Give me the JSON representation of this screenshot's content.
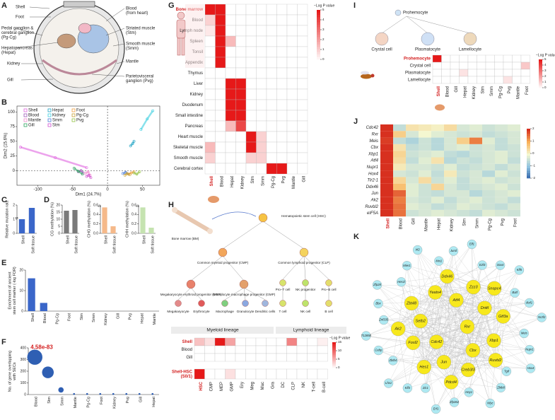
{
  "panel_labels": [
    "A",
    "B",
    "C",
    "D",
    "E",
    "F",
    "G",
    "H",
    "I",
    "J",
    "K"
  ],
  "A": {
    "labels": [
      [
        "Shell"
      ],
      [
        "Foot"
      ],
      [
        "Blood",
        "(from heart)"
      ],
      [
        "Pedal ganglion &",
        "cerebral ganglion",
        "(Pg-Cg)"
      ],
      [
        "Striated muscle",
        "(Stm)"
      ],
      [
        "Hepatopancreas",
        "(Hepat)"
      ],
      [
        "Smooth muscle",
        "(Smm)"
      ],
      [
        "Kidney"
      ],
      [
        "Mantle"
      ],
      [
        "Gill"
      ],
      [
        "Parietovisceral",
        "ganglion (Pvg)"
      ]
    ]
  },
  "B": {
    "type": "scatter",
    "xlabel": "Dim1 (24.7%)",
    "ylabel": "Dim2 (15.6%)",
    "xlim": [
      -130,
      75
    ],
    "ylim": [
      -25,
      110
    ],
    "xticks": [
      -100,
      -50,
      0,
      50
    ],
    "yticks": [
      0,
      25,
      50,
      75,
      100
    ],
    "series": [
      {
        "name": "Shell",
        "color": "#e066e0",
        "x": [
          -125,
          -75,
          -30
        ],
        "y": [
          40,
          22,
          5
        ]
      },
      {
        "name": "Blood",
        "color": "#9b59b6",
        "x": [
          -42,
          -38,
          -35
        ],
        "y": [
          -2,
          0,
          -4
        ]
      },
      {
        "name": "Mantle",
        "color": "#f08ccf",
        "x": [
          -32,
          -28,
          -25
        ],
        "y": [
          -5,
          -2,
          -8
        ]
      },
      {
        "name": "Gill",
        "color": "#2ca25f",
        "x": [
          -48,
          -42,
          -36
        ],
        "y": [
          4,
          -1,
          -6
        ]
      },
      {
        "name": "Hepat",
        "color": "#1fa3c4",
        "x": [
          33,
          36,
          38
        ],
        "y": [
          42,
          46,
          50
        ]
      },
      {
        "name": "Kidney",
        "color": "#3ccfe0",
        "x": [
          48,
          57,
          65
        ],
        "y": [
          70,
          88,
          102
        ]
      },
      {
        "name": "Smm",
        "color": "#4a7bd6",
        "x": [
          22,
          26,
          30
        ],
        "y": [
          -5,
          -3,
          -6
        ]
      },
      {
        "name": "Stm",
        "color": "#d050d0",
        "x": [
          -30,
          -27,
          -24
        ],
        "y": [
          -10,
          -8,
          -12
        ]
      },
      {
        "name": "Foot",
        "color": "#f0a040",
        "x": [
          30,
          34,
          38
        ],
        "y": [
          -6,
          -4,
          -2
        ]
      },
      {
        "name": "Pg-Cg",
        "color": "#c8a030",
        "x": [
          25,
          28,
          32
        ],
        "y": [
          -8,
          -5,
          -7
        ]
      },
      {
        "name": "Pvg",
        "color": "#90c040",
        "x": [
          38,
          42,
          46
        ],
        "y": [
          -4,
          -6,
          -2
        ]
      }
    ]
  },
  "C": {
    "type": "bar",
    "ylabel": [
      "Relative mutation rate"
    ],
    "categories": [
      "Shell",
      "Soft tissue"
    ],
    "values": [
      1.0,
      1.8
    ],
    "ylim": [
      0,
      2
    ],
    "yticks": [
      0,
      1,
      2
    ],
    "annotation": "**",
    "color": "#3a66c9"
  },
  "D": [
    {
      "type": "bar",
      "ylabel": [
        "CG methylation (%)"
      ],
      "categories": [
        "Shell",
        "Soft tissue"
      ],
      "values": [
        16,
        16.5
      ],
      "ylim": [
        0,
        20
      ],
      "yticks": [
        0,
        5,
        10,
        15,
        20
      ],
      "color": "#7a7a7a"
    },
    {
      "type": "bar",
      "ylabel": [
        "CHG methylation (%)"
      ],
      "categories": [
        "Shell",
        "Soft tissue"
      ],
      "values": [
        0.55,
        0.15
      ],
      "ylim": [
        0,
        0.6
      ],
      "yticks": [
        {
          "value": 0,
          "label": "0.0"
        },
        0.2,
        0.4,
        0.6
      ],
      "annotation": "**",
      "color": "#f5b98a"
    },
    {
      "type": "bar",
      "ylabel": [
        "CHH methylation (%)"
      ],
      "categories": [
        "Shell",
        "Soft tissue"
      ],
      "values": [
        0.55,
        0.12
      ],
      "ylim": [
        0,
        0.6
      ],
      "yticks": [
        {
          "value": 0,
          "label": "0.0"
        },
        0.2,
        0.4,
        0.6
      ],
      "annotation": "**",
      "color": "#c5e3b0"
    }
  ],
  "E": {
    "type": "bar",
    "ylabel": [
      "Enrichment of ancient",
      "stem cell marker (-log FDR)"
    ],
    "categories": [
      "Shell",
      "Blood",
      "Pg-Cg",
      "Foot",
      "Stm",
      "Smm",
      "Kidney",
      "Gill",
      "Pvg",
      "Hepat",
      "Mantle"
    ],
    "values": [
      16,
      4,
      0,
      0,
      0,
      0,
      0,
      0,
      0,
      0,
      0
    ],
    "ylim": [
      0,
      20
    ],
    "yticks": [
      0,
      10,
      20
    ],
    "color": "#3a66c9"
  },
  "F": {
    "type": "bubble",
    "ylabel": [
      "No. of gene overlapping",
      "with SECs"
    ],
    "categories": [
      "Blood",
      "Stm",
      "Smm",
      "Mantle",
      "Pg-Cg",
      "Foot",
      "Kidney",
      "Pvg",
      "Gill",
      "Hepat"
    ],
    "values": [
      320,
      190,
      40,
      5,
      5,
      5,
      5,
      5,
      5,
      5
    ],
    "ylim": [
      0,
      400
    ],
    "yticks": [
      0,
      100,
      200,
      300,
      400
    ],
    "annotation": "4.58e-83",
    "color": "#2f5fb3"
  },
  "G": {
    "legend_title": "−Log P value",
    "cticks": [
      0,
      1,
      2,
      3,
      4,
      5
    ],
    "rows": [
      "Bone marrow",
      "Blood",
      "Lymph node",
      "Spleen",
      "Tonsil",
      "Appendix",
      "Thymus",
      "Liver",
      "Kidney",
      "Duodenum",
      "Small intestine",
      "Pancreas",
      "Heart muscle",
      "Skeletal muscle",
      "Smooth muscle",
      "Cerebral cortex"
    ],
    "cols": [
      "Shell",
      "Blood",
      "Hepat",
      "Kidney",
      "Stm",
      "Smm",
      "Pg-Cg",
      "Pvg",
      "Mantle",
      "Gill"
    ],
    "matrix": [
      [
        5,
        5,
        0,
        0,
        0,
        0,
        0,
        0,
        0,
        0
      ],
      [
        1,
        5,
        0,
        0,
        0,
        0,
        0,
        0,
        0,
        0
      ],
      [
        0.5,
        5,
        0,
        0,
        0,
        0,
        0,
        0,
        0,
        0
      ],
      [
        0,
        5,
        1.5,
        0,
        0,
        0,
        0,
        0,
        0,
        0
      ],
      [
        0,
        5,
        0,
        0,
        0,
        0,
        0,
        0,
        0,
        0
      ],
      [
        0,
        5,
        0,
        0,
        0,
        0,
        0,
        0,
        0,
        0
      ],
      [
        0,
        0,
        0,
        0,
        0,
        0,
        0,
        0,
        0,
        0
      ],
      [
        0,
        0,
        5,
        5,
        0,
        0,
        0,
        0,
        0,
        0
      ],
      [
        0,
        0,
        5,
        5,
        0,
        0,
        0,
        0,
        0,
        0
      ],
      [
        0,
        0,
        5,
        5,
        0,
        0,
        0,
        0,
        0,
        0
      ],
      [
        0,
        0,
        5,
        5,
        0,
        0,
        0,
        0,
        0,
        0
      ],
      [
        0,
        0,
        1.5,
        4,
        0,
        0,
        0,
        0,
        0,
        0
      ],
      [
        0,
        0,
        0,
        0,
        5,
        1,
        0,
        0,
        0,
        0
      ],
      [
        1.5,
        0,
        0,
        0,
        5,
        1,
        0,
        0,
        0,
        0
      ],
      [
        1,
        0,
        0,
        0,
        1,
        1,
        0,
        0,
        0,
        0
      ],
      [
        0,
        0,
        0,
        0,
        0,
        0,
        5,
        5,
        0,
        0
      ]
    ]
  },
  "H": {
    "cells": [
      "Bone marrow (BM)",
      "Hematopoietic stem cell (HSC)",
      "Common myeloid progenitor (CMP)",
      "Common lymphoid progenitor (CLP)",
      "Megakaryocyte erythroid progenitor (MEP)",
      "Granulocyte macrophage progenitor (GMP)",
      "Pro−T cell",
      "NK progenitor",
      "Pro−B cell",
      "Megakaryocyte",
      "Erythrocyte",
      "Macrophage",
      "Granulocyte",
      "Dendritic cells",
      "T cell",
      "NK cell",
      "B cell"
    ],
    "lineages": [
      "Myeloid lineage",
      "Lymphoid lineage"
    ],
    "legend_title": "−Log P value",
    "cticks": [
      0,
      5,
      10,
      15
    ],
    "rows": [
      "Shell",
      "Blood",
      "Gill"
    ],
    "rows2": [
      [
        "Shell-HSC",
        "(S0/1)"
      ]
    ],
    "cols": [
      "HSC",
      "CMP",
      "MEP",
      "GMP",
      "Ery",
      "Meg",
      "Mac",
      "Gra",
      "DC",
      "CLP",
      "NK",
      "T-cell",
      "B-cell"
    ],
    "matrix": [
      [
        4,
        2,
        15,
        6,
        0,
        0,
        0,
        0,
        0,
        8,
        0,
        0,
        1
      ],
      [
        0,
        0,
        0,
        0,
        0,
        0,
        0,
        0,
        0,
        0,
        0,
        0,
        0
      ],
      [
        0,
        0,
        0,
        0,
        0,
        0,
        0,
        0,
        0,
        0,
        0,
        0,
        0
      ]
    ],
    "matrix2": [
      [
        15,
        0,
        0,
        2,
        0,
        0,
        0,
        0,
        0,
        0,
        0,
        0,
        0
      ]
    ]
  },
  "I": {
    "cells": [
      "Prohemocyte",
      "Crystal cell",
      "Plasmatocyte",
      "Lamellocyte"
    ],
    "legend_title": "−Log P value",
    "cticks": [
      0,
      1,
      2,
      3,
      4,
      5
    ],
    "rows": [
      "Prohemocyte",
      "Crystal cell",
      "Plasmatocyte",
      "Lamellocyte"
    ],
    "cols": [
      "Shell",
      "Blood",
      "Gill",
      "Hepat",
      "Kidney",
      "Stm",
      "Smm",
      "Pg-Cg",
      "Pvg",
      "Mantle",
      "Foot"
    ],
    "matrix": [
      [
        5,
        0,
        0,
        0,
        0,
        0,
        0,
        0,
        0,
        0,
        0
      ],
      [
        0,
        0,
        0,
        0,
        0,
        0,
        0,
        0,
        0,
        0,
        1.2
      ],
      [
        0,
        0,
        0,
        0.6,
        0,
        0,
        0,
        0,
        0,
        0,
        0
      ],
      [
        0,
        0,
        0,
        0,
        0,
        0,
        0,
        0,
        0.6,
        0,
        0
      ]
    ]
  },
  "J": {
    "cticks": [
      -2,
      -1,
      0,
      1,
      2
    ],
    "rows": [
      "Cdc42",
      "Rxr",
      "Meis",
      "Cbx",
      "Xbp1",
      "Atf4",
      "Nupr1",
      "Hox4",
      "Tlr2-1",
      "Ddx46",
      "Jun",
      "Ak2",
      "Ruvbl2",
      "eIF5A"
    ],
    "cols": [
      "Shell",
      "Blood",
      "Gill",
      "Mantle",
      "Hepat",
      "Kidney",
      "Stm",
      "Smm",
      "Pg-Cg",
      "Pvg",
      "Foot"
    ],
    "matrix": [
      [
        2.2,
        -0.5,
        0.3,
        0.2,
        0.1,
        0.4,
        -0.3,
        -0.2,
        -0.4,
        -0.3,
        -0.2
      ],
      [
        2.0,
        0.6,
        -0.3,
        0.0,
        -0.2,
        -0.3,
        -0.4,
        -0.3,
        -0.5,
        -0.4,
        -0.3
      ],
      [
        1.9,
        -0.5,
        -0.7,
        -0.4,
        -0.6,
        -0.3,
        0.6,
        1.4,
        -0.2,
        -0.5,
        -0.3
      ],
      [
        2.2,
        0.3,
        -0.5,
        -0.4,
        -0.6,
        -0.3,
        -0.2,
        -0.4,
        -0.3,
        -0.5,
        -0.4
      ],
      [
        2.1,
        0.5,
        -0.4,
        -0.3,
        -0.2,
        -0.5,
        -0.6,
        -0.4,
        -0.3,
        -0.2,
        -0.4
      ],
      [
        2.1,
        0.4,
        -0.5,
        -0.2,
        0.3,
        -0.6,
        -0.4,
        -0.5,
        -0.3,
        -0.2,
        -0.5
      ],
      [
        2.2,
        0.2,
        -0.3,
        -0.3,
        -0.4,
        -0.2,
        -0.5,
        -0.4,
        -0.3,
        -0.5,
        -0.3
      ],
      [
        2.2,
        -0.3,
        -0.4,
        -0.2,
        -0.5,
        0.2,
        -0.4,
        -0.3,
        -0.6,
        -0.2,
        -0.4
      ],
      [
        2.0,
        0.5,
        -0.3,
        0.4,
        -0.4,
        -0.2,
        -0.5,
        -0.3,
        -0.2,
        -0.4,
        -0.3
      ],
      [
        2.0,
        0.8,
        -0.2,
        -0.4,
        0.5,
        -0.3,
        -0.5,
        -0.4,
        -0.3,
        -0.2,
        -0.4
      ],
      [
        2.1,
        1.6,
        -0.2,
        -0.4,
        -0.5,
        -0.3,
        -0.3,
        -0.6,
        -0.4,
        -0.3,
        -0.2
      ],
      [
        2.2,
        1.4,
        -0.3,
        -0.4,
        -0.2,
        -0.5,
        -0.3,
        -0.2,
        -0.4,
        -0.3,
        -0.5
      ],
      [
        2.2,
        1.5,
        -0.2,
        -0.3,
        -0.5,
        -0.4,
        -0.2,
        -0.3,
        -0.4,
        -0.5,
        -0.3
      ],
      [
        2.2,
        1.5,
        -0.4,
        -0.3,
        -0.2,
        -0.3,
        -0.4,
        -0.5,
        -0.2,
        -0.3,
        -0.4
      ]
    ]
  },
  "K": {
    "hub_color": "#f7e81c",
    "other_color": "#aee9f2",
    "hub_genes": [
      "Rxr",
      "Cdc42",
      "Atf4",
      "Cbx",
      "Setb2",
      "Dnttl",
      "Jun",
      "Yeats4",
      "Xbp1",
      "Fosl2",
      "Zzz3",
      "Creb3l3",
      "Zbt48",
      "Gtf3a",
      "Hes1",
      "Ddx46",
      "Ruvbl2",
      "Ak2",
      "Snapc4",
      "Pdcd4"
    ],
    "other_genes": [
      "Meis",
      "Nupr1",
      "Hox4",
      "Tgif",
      "Zbtb8",
      "Nfyc",
      "Hey1",
      "Zfp362",
      "Erf1",
      "Zic1",
      "Klf3",
      "Lhx1",
      "Zbtb4",
      "Cebp",
      "T12858",
      "Znf335",
      "Bbx",
      "Zfp28",
      "Hes1l",
      "Mier1",
      "Irf2",
      "Mxi1",
      "Jund",
      "Elf1",
      "E2f4",
      "Sox4",
      "Klf5",
      "Batf",
      "Ikzf1",
      "Nr2f2"
    ]
  }
}
